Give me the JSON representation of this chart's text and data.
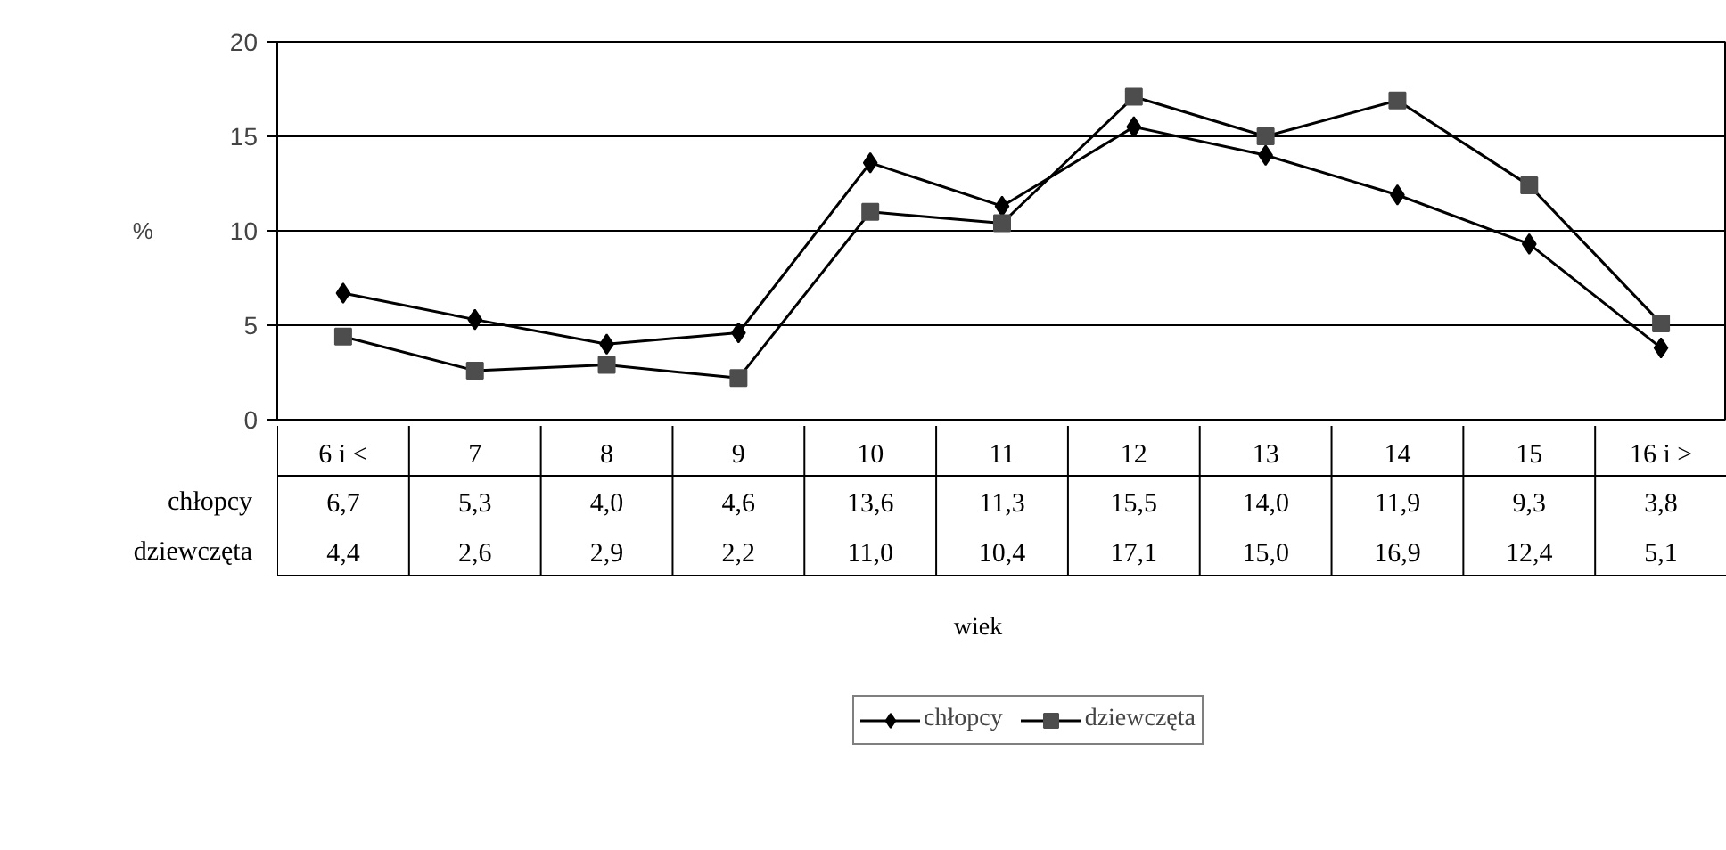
{
  "chart_data": {
    "type": "line",
    "ylim": [
      0,
      20
    ],
    "yticks": [
      0,
      5,
      10,
      15,
      20
    ],
    "ylabel": "%",
    "annotations": [
      "wiek"
    ],
    "categories": [
      "6 i <",
      "7",
      "8",
      "9",
      "10",
      "11",
      "12",
      "13",
      "14",
      "15",
      "16 i >"
    ],
    "series": [
      {
        "name": "chłopcy",
        "color": "#000000",
        "marker": "diamond",
        "values": [
          6.7,
          5.3,
          4.0,
          4.6,
          13.6,
          11.3,
          15.5,
          14.0,
          11.9,
          9.3,
          3.8
        ],
        "value_labels": [
          "6,7",
          "5,3",
          "4,0",
          "4,6",
          "13,6",
          "11,3",
          "15,5",
          "14,0",
          "11,9",
          "9,3",
          "3,8"
        ]
      },
      {
        "name": "dziewczęta",
        "color": "#4d4d4d",
        "marker": "square",
        "values": [
          4.4,
          2.6,
          2.9,
          2.2,
          11.0,
          10.4,
          17.1,
          15.0,
          16.9,
          12.4,
          5.1
        ],
        "value_labels": [
          "4,4",
          "2,6",
          "2,9",
          "2,2",
          "11,0",
          "10,4",
          "17,1",
          "15,0",
          "16,9",
          "12,4",
          "5,1"
        ]
      }
    ],
    "grid": "y",
    "legend": "bottom"
  }
}
